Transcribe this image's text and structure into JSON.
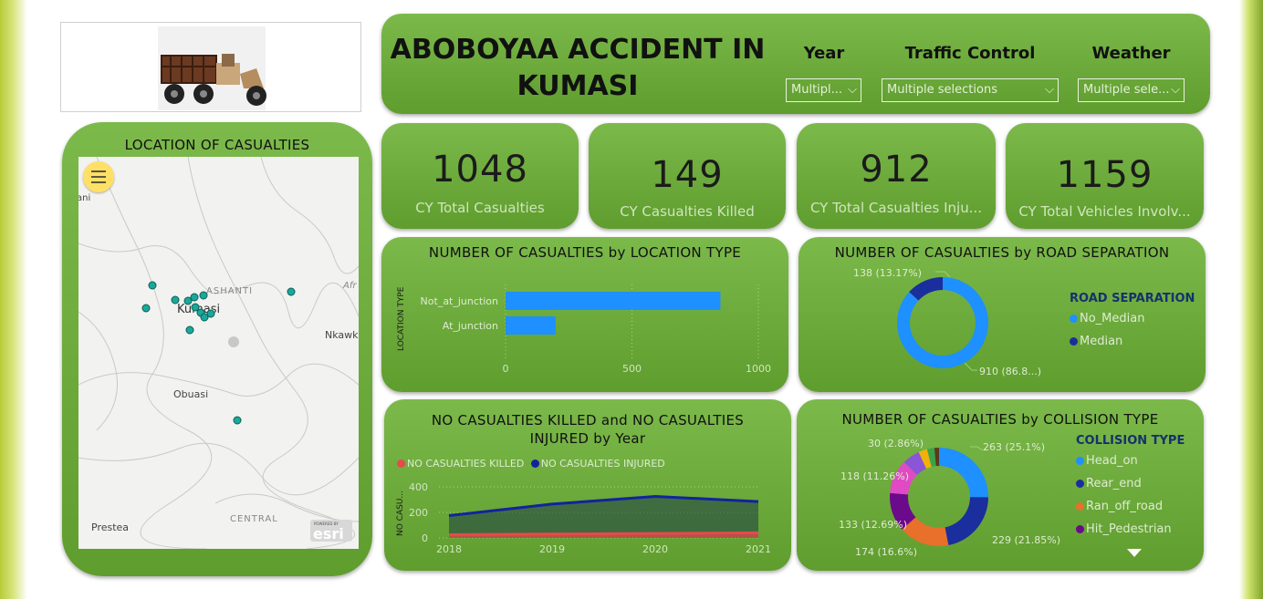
{
  "header": {
    "title_line1": "ABOBOYAA ACCIDENT IN",
    "title_line2": "KUMASI"
  },
  "slicers": [
    {
      "label": "Year",
      "value": "Multipl..."
    },
    {
      "label": "Traffic Control",
      "value": "Multiple selections"
    },
    {
      "label": "Weather",
      "value": "Multiple sele..."
    }
  ],
  "kpis": [
    {
      "value": "1048",
      "label": "CY Total Casualties"
    },
    {
      "value": "149",
      "label": "CY Casualties Killed"
    },
    {
      "value": "912",
      "label": "CY Total Casualties Inju..."
    },
    {
      "value": "1159",
      "label": "CY Total Vehicles Involv..."
    }
  ],
  "map": {
    "title": "LOCATION OF CASUALTIES",
    "places": {
      "ani": "ani",
      "ashanti": "ASHANTI",
      "kumasi": "Kumasi",
      "afr": "Afr",
      "nkawka": "Nkawka",
      "obuasi": "Obuasi",
      "central": "CENTRAL",
      "prestea": "Prestea"
    },
    "esri_badge": "esri",
    "powered_by": "POWERED BY"
  },
  "colors": {
    "card_top": "#7cb94b",
    "card_bottom": "#5f9d2e",
    "bar": "#1e90ff",
    "no_median": "#1e90ff",
    "median": "#1b2e9e",
    "killed": "#e64a4a",
    "injured": "#12239e",
    "head_on": "#1e90ff",
    "rear_end": "#1b2e9e",
    "ran_off_road": "#e8702a",
    "hit_pedestrian": "#6b0a8a",
    "map_dot": "#1aa89a"
  },
  "chart_data": [
    {
      "type": "bar",
      "title": "NUMBER OF CASUALTIES by LOCATION TYPE",
      "ylabel": "LOCATION TYPE",
      "categories": [
        "Not_at_junction",
        "At_junction"
      ],
      "values": [
        850,
        198
      ],
      "xlim": [
        0,
        1000
      ],
      "xticks": [
        "0",
        "500",
        "1000"
      ],
      "grid": true
    },
    {
      "type": "pie",
      "title": "NUMBER OF CASUALTIES by ROAD SEPARATION",
      "legend_title": "ROAD SEPARATION",
      "labels": [
        "No_Median",
        "Median"
      ],
      "values": [
        910,
        138
      ],
      "data_labels": [
        "910 (86.8...)",
        "138 (13.17%)"
      ]
    },
    {
      "type": "area",
      "title": "NO CASUALTIES KILLED and NO CASUALTIES INJURED by Year",
      "ylabel": "NO CASU...",
      "x": [
        "2018",
        "2019",
        "2020",
        "2021"
      ],
      "series": [
        {
          "name": "NO CASUALTIES KILLED",
          "values": [
            25,
            30,
            35,
            40
          ]
        },
        {
          "name": "NO CASUALTIES INJURED",
          "values": [
            175,
            265,
            325,
            285
          ]
        }
      ],
      "ylim": [
        0,
        400
      ],
      "yticks": [
        "0",
        "200",
        "400"
      ]
    },
    {
      "type": "pie",
      "title": "NUMBER OF CASUALTIES by COLLISION TYPE",
      "legend_title": "COLLISION TYPE",
      "legend": [
        "Head_on",
        "Rear_end",
        "Ran_off_road",
        "Hit_Pedestrian"
      ],
      "slices": [
        {
          "value": 263,
          "label": "263 (25.1%)"
        },
        {
          "value": 229,
          "label": "229 (21.85%)"
        },
        {
          "value": 174,
          "label": "174 (16.6%)"
        },
        {
          "value": 133,
          "label": "133 (12.69%)"
        },
        {
          "value": 118,
          "label": "118 (11.26%)"
        },
        {
          "value": 60,
          "label": ""
        },
        {
          "value": 30,
          "label": "30 (2.86%)"
        },
        {
          "value": 25,
          "label": ""
        },
        {
          "value": 16,
          "label": ""
        }
      ]
    }
  ]
}
